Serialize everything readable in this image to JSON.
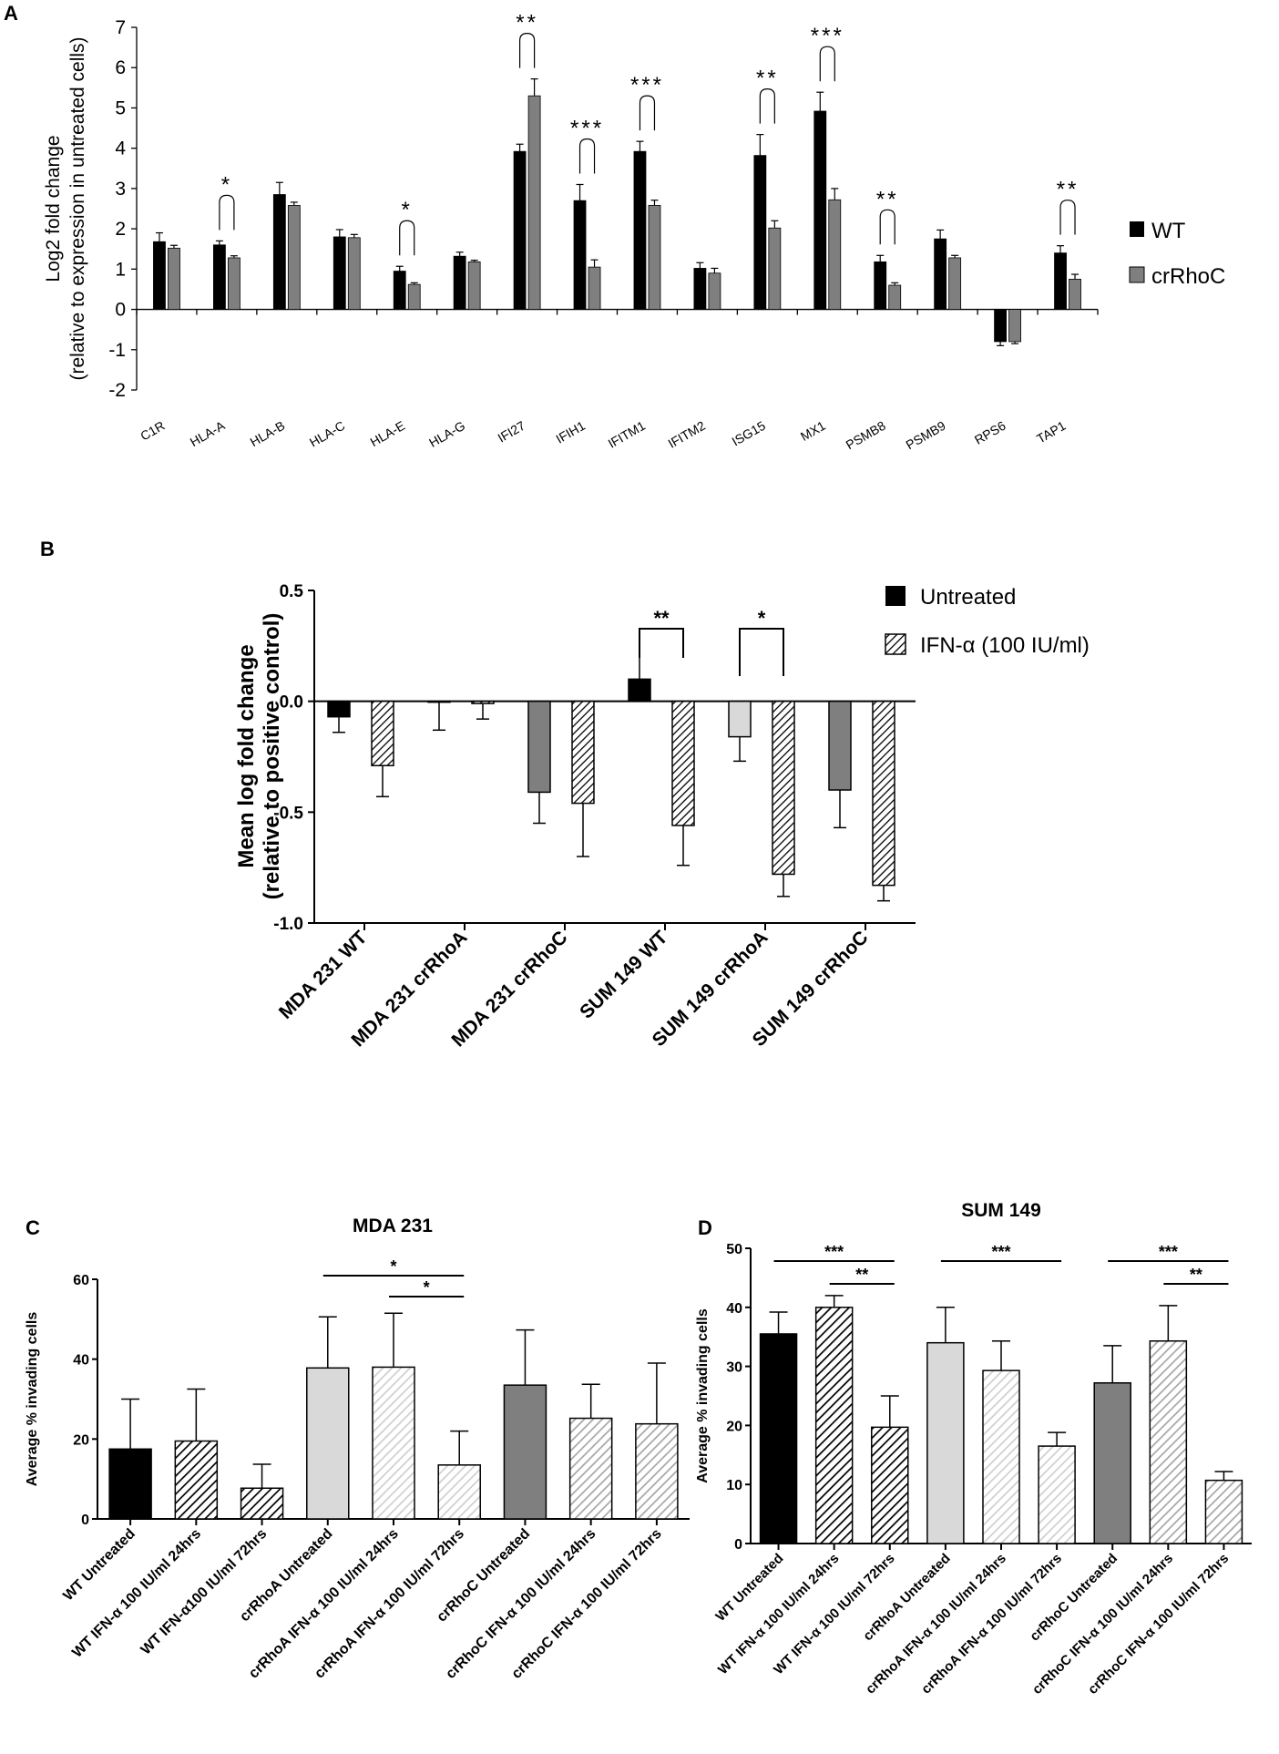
{
  "chart_data": [
    {
      "panel": "A",
      "type": "bar",
      "title": "",
      "ylabel_line1": "Log2 fold change",
      "ylabel_line2": "(relative to expression in untreated cells)",
      "ylim": [
        -2,
        7
      ],
      "yticks": [
        -2,
        -1,
        0,
        1,
        2,
        3,
        4,
        5,
        6,
        7
      ],
      "categories": [
        "C1R",
        "HLA-A",
        "HLA-B",
        "HLA-C",
        "HLA-E",
        "HLA-G",
        "IFI27",
        "IFIH1",
        "IFITM1",
        "IFITM2",
        "ISG15",
        "MX1",
        "PSMB8",
        "PSMB9",
        "RPS6",
        "TAP1"
      ],
      "series": [
        {
          "name": "WT",
          "color": "#000000",
          "values": [
            1.68,
            1.6,
            2.85,
            1.8,
            0.95,
            1.32,
            3.92,
            2.7,
            3.92,
            1.02,
            3.82,
            4.92,
            1.18,
            1.75,
            -0.8,
            1.4
          ],
          "errors": [
            0.22,
            0.1,
            0.3,
            0.18,
            0.12,
            0.1,
            0.18,
            0.4,
            0.25,
            0.14,
            0.52,
            0.47,
            0.16,
            0.22,
            0.1,
            0.18
          ]
        },
        {
          "name": "crRhoC",
          "color": "#7f7f7f",
          "values": [
            1.52,
            1.28,
            2.58,
            1.78,
            0.62,
            1.18,
            5.3,
            1.05,
            2.58,
            0.9,
            2.02,
            2.72,
            0.6,
            1.28,
            -0.8,
            0.75
          ],
          "errors": [
            0.07,
            0.05,
            0.08,
            0.08,
            0.04,
            0.04,
            0.42,
            0.18,
            0.13,
            0.12,
            0.18,
            0.28,
            0.06,
            0.06,
            0.05,
            0.12
          ]
        }
      ],
      "significance": [
        {
          "category": "HLA-A",
          "label": "*"
        },
        {
          "category": "HLA-E",
          "label": "*"
        },
        {
          "category": "IFI27",
          "label": "**"
        },
        {
          "category": "IFIH1",
          "label": "***"
        },
        {
          "category": "IFITM1",
          "label": "***"
        },
        {
          "category": "ISG15",
          "label": "**"
        },
        {
          "category": "MX1",
          "label": "***"
        },
        {
          "category": "PSMB8",
          "label": "**"
        },
        {
          "category": "TAP1",
          "label": "**"
        }
      ],
      "legend": [
        "WT",
        "crRhoC"
      ],
      "legend_position": "right"
    },
    {
      "panel": "B",
      "type": "bar",
      "title": "",
      "ylabel_line1": "Mean log fold change",
      "ylabel_line2": "(relative to positive control)",
      "ylim": [
        -1.0,
        0.5
      ],
      "yticks": [
        "0.5",
        "0.0",
        "-0.5",
        "-1.0"
      ],
      "categories": [
        "MDA 231 WT",
        "MDA 231 crRhoA",
        "MDA 231 crRhoC",
        "SUM 149 WT",
        "SUM 149 crRhoA",
        "SUM 149 crRhoC"
      ],
      "series": [
        {
          "name": "Untreated",
          "values": [
            -0.07,
            0.0,
            -0.41,
            0.1,
            -0.16,
            -0.4
          ],
          "errors": [
            0.07,
            0.13,
            0.14,
            0.1,
            0.11,
            0.17
          ],
          "colors": [
            "#000000",
            "#ffffff",
            "#7f7f7f",
            "#000000",
            "#d9d9d9",
            "#7f7f7f"
          ]
        },
        {
          "name": "IFN-α (100 IU/ml)",
          "values": [
            -0.29,
            -0.01,
            -0.46,
            -0.56,
            -0.78,
            -0.83
          ],
          "errors": [
            0.14,
            0.07,
            0.24,
            0.18,
            0.1,
            0.07
          ],
          "colors": [
            "#000000",
            "#ffffff",
            "#7f7f7f",
            "#000000",
            "#d9d9d9",
            "#7f7f7f"
          ]
        }
      ],
      "significance": [
        {
          "category": "SUM 149 WT",
          "label": "**"
        },
        {
          "category": "SUM 149 crRhoA",
          "label": "*"
        }
      ],
      "legend": [
        "Untreated",
        "IFN-α (100 IU/ml)"
      ],
      "legend_position": "top-right"
    },
    {
      "panel": "C",
      "type": "bar",
      "title": "MDA 231",
      "ylabel": "Average % invading cells",
      "ylim": [
        0,
        60
      ],
      "yticks": [
        0,
        20,
        40,
        60
      ],
      "categories": [
        "WT Untreated",
        "WT IFN-α 100 IU/ml 24hrs",
        "WT IFN-α100 IU/ml 72hrs",
        "crRhoA Untreated",
        "crRhoA IFN-α 100 IU/ml 24hrs",
        "crRhoA IFN-α 100 IU/ml 72hrs",
        "crRhoC Untreated",
        "crRhoC IFN-α 100 IU/ml 24hrs",
        "crRhoC IFN-α 100 IU/ml 72hrs"
      ],
      "values": [
        17.5,
        19.5,
        7.7,
        37.8,
        38.0,
        13.5,
        33.5,
        25.2,
        23.8
      ],
      "errors": [
        12.5,
        13.0,
        6.0,
        12.8,
        13.5,
        8.5,
        13.8,
        8.5,
        15.2
      ],
      "fills": [
        "#000000",
        "#000000",
        "#000000",
        "#d9d9d9",
        "#d9d9d9",
        "#d9d9d9",
        "#7f7f7f",
        "#bfbfbf",
        "#bfbfbf"
      ],
      "hatched": [
        false,
        true,
        true,
        false,
        true,
        true,
        false,
        true,
        true
      ],
      "significance": [
        {
          "from": "crRhoA Untreated",
          "to": "crRhoA IFN-α 100 IU/ml 72hrs",
          "label": "*"
        },
        {
          "from": "crRhoA IFN-α 100 IU/ml 24hrs",
          "to": "crRhoA IFN-α 100 IU/ml 72hrs",
          "label": "*"
        }
      ]
    },
    {
      "panel": "D",
      "type": "bar",
      "title": "SUM 149",
      "ylabel": "Average % invading cells",
      "ylim": [
        0,
        50
      ],
      "yticks": [
        0,
        10,
        20,
        30,
        40,
        50
      ],
      "categories": [
        "WT Untreated",
        "WT IFN-α 100 IU/ml 24hrs",
        "WT IFN-α 100 IU/ml 72hrs",
        "crRhoA Untreated",
        "crRhoA IFN-α 100 IU/ml 24hrs",
        "crRhoA IFN-α 100 IU/ml 72hrs",
        "crRhoC Untreated",
        "crRhoC IFN-α 100 IU/ml 24hrs",
        "crRhoC IFN-α 100 IU/ml 72hrs"
      ],
      "values": [
        35.5,
        40.0,
        19.7,
        34.0,
        29.3,
        16.5,
        27.2,
        34.3,
        10.7
      ],
      "errors": [
        3.7,
        2.0,
        5.3,
        6.0,
        5.0,
        2.3,
        6.3,
        6.0,
        1.5
      ],
      "fills": [
        "#000000",
        "#000000",
        "#000000",
        "#d9d9d9",
        "#d9d9d9",
        "#d9d9d9",
        "#7f7f7f",
        "#bfbfbf",
        "#bfbfbf"
      ],
      "hatched": [
        false,
        true,
        true,
        false,
        true,
        true,
        false,
        true,
        true
      ],
      "significance": [
        {
          "from": "WT Untreated",
          "to": "WT IFN-α 100 IU/ml 72hrs",
          "label": "***"
        },
        {
          "from": "WT IFN-α 100 IU/ml 24hrs",
          "to": "WT IFN-α 100 IU/ml 72hrs",
          "label": "**"
        },
        {
          "from": "crRhoA Untreated",
          "to": "crRhoA IFN-α 100 IU/ml 72hrs",
          "label": "***"
        },
        {
          "from": "crRhoC Untreated",
          "to": "crRhoC IFN-α 100 IU/ml 72hrs",
          "label": "***"
        },
        {
          "from": "crRhoC IFN-α 100 IU/ml 24hrs",
          "to": "crRhoC IFN-α 100 IU/ml 72hrs",
          "label": "**"
        }
      ]
    }
  ]
}
